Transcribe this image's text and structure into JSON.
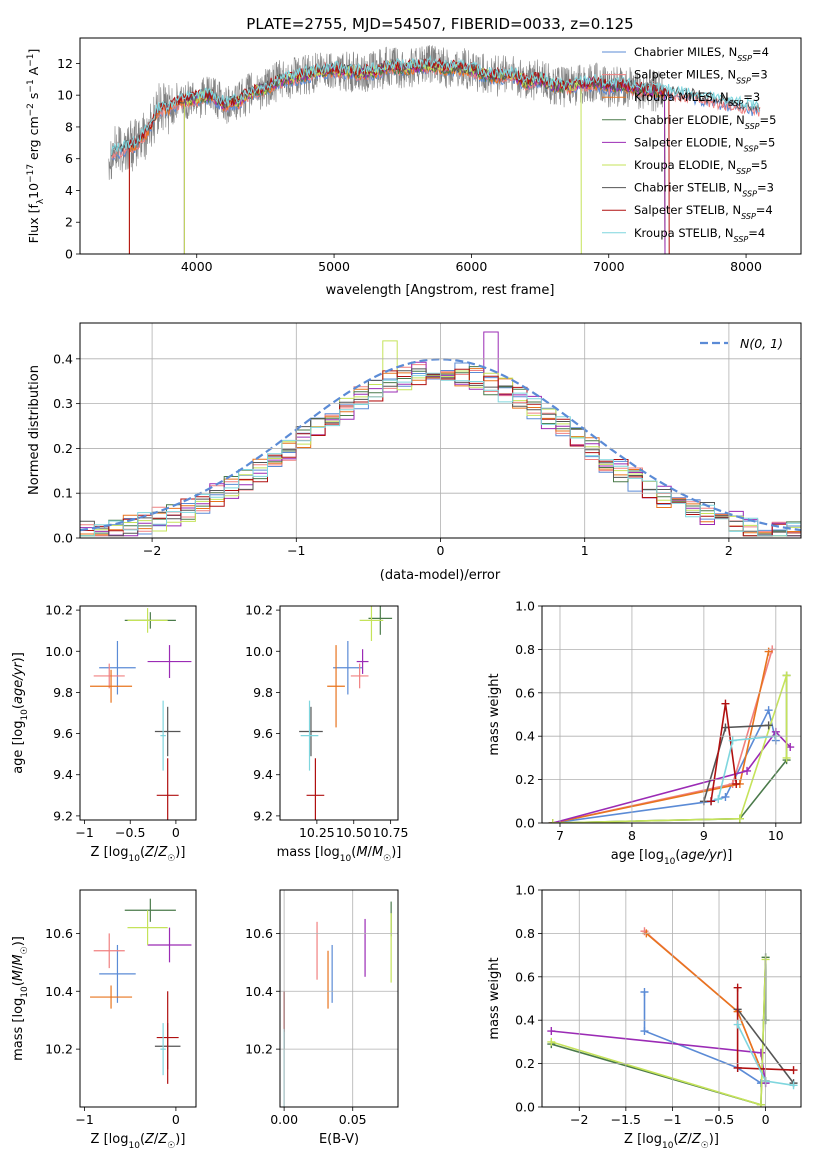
{
  "figure_title": "PLATE=2755, MJD=54507, FIBERID=0033, z=0.125",
  "colors": {
    "chabrier_miles": "#5b8bd6",
    "salpeter_miles": "#f08080",
    "kroupa_miles": "#e8741e",
    "chabrier_elodie": "#4a7a4a",
    "salpeter_elodie": "#9b2bb5",
    "kroupa_elodie": "#c5e35a",
    "chabrier_stelib": "#555555",
    "salpeter_stelib": "#b01010",
    "kroupa_stelib": "#7fd6de",
    "data": "#808080"
  },
  "chart_data": [
    {
      "type": "line",
      "title": "PLATE=2755, MJD=54507, FIBERID=0033, z=0.125",
      "xlabel": "wavelength [Angstrom, rest frame]",
      "ylabel": "Flux [fλ10⁻¹⁷ erg cm⁻² s⁻¹ A⁻¹]",
      "xlim": [
        3150,
        8400
      ],
      "ylim": [
        0,
        13.6
      ],
      "xticks": [
        4000,
        5000,
        6000,
        7000,
        8000
      ],
      "yticks": [
        0,
        2,
        4,
        6,
        8,
        10,
        12
      ],
      "legend": "top-right",
      "legend_entries": [
        {
          "label": "Chabrier MILES, N",
          "sub": "SSP",
          "suffix": "=4",
          "color": "#5b8bd6"
        },
        {
          "label": "Salpeter MILES, N",
          "sub": "SSP",
          "suffix": "=3",
          "color": "#f08080"
        },
        {
          "label": "Kroupa MILES, N",
          "sub": "SSP",
          "suffix": "=3",
          "color": "#e8741e"
        },
        {
          "label": "Chabrier ELODIE, N",
          "sub": "SSP",
          "suffix": "=5",
          "color": "#4a7a4a"
        },
        {
          "label": "Salpeter ELODIE, N",
          "sub": "SSP",
          "suffix": "=5",
          "color": "#9b2bb5"
        },
        {
          "label": "Kroupa ELODIE, N",
          "sub": "SSP",
          "suffix": "=5",
          "color": "#c5e35a"
        },
        {
          "label": "Chabrier STELIB, N",
          "sub": "SSP",
          "suffix": "=3",
          "color": "#555555"
        },
        {
          "label": "Salpeter STELIB, N",
          "sub": "SSP",
          "suffix": "=4",
          "color": "#b01010"
        },
        {
          "label": "Kroupa STELIB, N",
          "sub": "SSP",
          "suffix": "=4",
          "color": "#7fd6de"
        }
      ],
      "spectrum_knots": [
        [
          3360,
          6.3
        ],
        [
          3450,
          6.6
        ],
        [
          3550,
          6.9
        ],
        [
          3650,
          7.8
        ],
        [
          3720,
          9.1
        ],
        [
          3800,
          9.2
        ],
        [
          3900,
          9.7
        ],
        [
          4000,
          9.8
        ],
        [
          4100,
          10.0
        ],
        [
          4200,
          9.4
        ],
        [
          4300,
          9.6
        ],
        [
          4400,
          10.2
        ],
        [
          4500,
          10.4
        ],
        [
          4600,
          10.9
        ],
        [
          4700,
          11.1
        ],
        [
          4800,
          11.3
        ],
        [
          4900,
          11.5
        ],
        [
          5000,
          11.6
        ],
        [
          5100,
          11.5
        ],
        [
          5200,
          11.4
        ],
        [
          5300,
          11.5
        ],
        [
          5400,
          11.8
        ],
        [
          5500,
          11.7
        ],
        [
          5600,
          11.8
        ],
        [
          5700,
          11.9
        ],
        [
          5800,
          11.7
        ],
        [
          5900,
          11.7
        ],
        [
          6000,
          11.6
        ],
        [
          6100,
          11.3
        ],
        [
          6200,
          11.2
        ],
        [
          6300,
          11.3
        ],
        [
          6400,
          10.8
        ],
        [
          6500,
          11.0
        ],
        [
          6600,
          10.6
        ],
        [
          6700,
          10.5
        ],
        [
          6800,
          10.7
        ],
        [
          6900,
          10.8
        ],
        [
          7000,
          10.5
        ],
        [
          7100,
          10.6
        ],
        [
          7200,
          10.4
        ],
        [
          7300,
          10.3
        ],
        [
          7400,
          10.2
        ],
        [
          7600,
          10.0
        ],
        [
          7800,
          9.6
        ],
        [
          8000,
          9.3
        ],
        [
          8100,
          9.1
        ]
      ],
      "model_cutoffs": [
        {
          "model": "salpeter_stelib",
          "start": 3510,
          "end": 7440
        },
        {
          "model": "kroupa_miles",
          "start": 3510,
          "end": 7410
        },
        {
          "model": "kroupa_elodie",
          "start": 3910,
          "end": 6800
        },
        {
          "model": "chabrier_elodie",
          "start": 3910,
          "end": 7410
        },
        {
          "model": "salpeter_elodie",
          "start": 3910,
          "end": 7410
        }
      ]
    },
    {
      "type": "histogram",
      "xlabel": "(data-model)/error",
      "ylabel": "Normed distribution",
      "xlim": [
        -2.5,
        2.5
      ],
      "ylim": [
        0,
        0.48
      ],
      "xticks": [
        -2,
        -1,
        0,
        1,
        2
      ],
      "yticks": [
        0.0,
        0.1,
        0.2,
        0.3,
        0.4
      ],
      "grid": true,
      "legend": "top-right",
      "legend_label": "N(0, 1)",
      "bin_width": 0.1,
      "reference_curve": "normal pdf mean 0 sigma 1",
      "reference_color": "#5b8bd6"
    },
    {
      "type": "scatter",
      "panel": "age vs Z",
      "xlabel": "Z [log10(Z/Z☉)]",
      "ylabel": "age  [log10(age/yr)]",
      "xlim": [
        -1.05,
        0.22
      ],
      "ylim": [
        9.18,
        10.22
      ],
      "xticks": [
        -1,
        -0.5,
        0
      ],
      "yticks": [
        9.2,
        9.4,
        9.6,
        9.8,
        10.0,
        10.2
      ],
      "points": [
        {
          "model": "chabrier_miles",
          "x": -0.64,
          "y": 9.92,
          "xerr": 0.2,
          "yerr": 0.13
        },
        {
          "model": "salpeter_miles",
          "x": -0.73,
          "y": 9.88,
          "xerr": 0.17,
          "yerr": 0.06
        },
        {
          "model": "kroupa_miles",
          "x": -0.71,
          "y": 9.83,
          "xerr": 0.23,
          "yerr": 0.08
        },
        {
          "model": "chabrier_elodie",
          "x": -0.28,
          "y": 10.15,
          "xerr": 0.28,
          "yerr": 0.04
        },
        {
          "model": "salpeter_elodie",
          "x": -0.07,
          "y": 9.95,
          "xerr": 0.24,
          "yerr": 0.08
        },
        {
          "model": "kroupa_elodie",
          "x": -0.31,
          "y": 10.15,
          "xerr": 0.22,
          "yerr": 0.06
        },
        {
          "model": "chabrier_stelib",
          "x": -0.09,
          "y": 9.61,
          "xerr": 0.14,
          "yerr": 0.12
        },
        {
          "model": "salpeter_stelib",
          "x": -0.09,
          "y": 9.3,
          "xerr": 0.12,
          "yerr": 0.18
        },
        {
          "model": "kroupa_stelib",
          "x": -0.14,
          "y": 9.59,
          "xerr": 0.03,
          "yerr": 0.17
        }
      ]
    },
    {
      "type": "scatter",
      "panel": "age vs mass",
      "xlabel": "mass [log10(M/M☉)]",
      "xlim": [
        10.0,
        10.8
      ],
      "ylim": [
        9.18,
        10.22
      ],
      "xticks": [
        10.25,
        10.5,
        10.75
      ],
      "xtick_labels": [
        "10.25",
        "10.50",
        "10.75"
      ],
      "yticks": [
        9.2,
        9.4,
        9.6,
        9.8,
        10.0,
        10.2
      ],
      "points": [
        {
          "model": "chabrier_miles",
          "x": 10.46,
          "y": 9.92,
          "xerr": 0.1,
          "yerr": 0.13
        },
        {
          "model": "salpeter_miles",
          "x": 10.54,
          "y": 9.88,
          "xerr": 0.06,
          "yerr": 0.06
        },
        {
          "model": "kroupa_miles",
          "x": 10.38,
          "y": 9.83,
          "xerr": 0.06,
          "yerr": 0.2
        },
        {
          "model": "chabrier_elodie",
          "x": 10.68,
          "y": 10.16,
          "xerr": 0.08,
          "yerr": 0.08
        },
        {
          "model": "salpeter_elodie",
          "x": 10.56,
          "y": 9.95,
          "xerr": 0.04,
          "yerr": 0.06
        },
        {
          "model": "kroupa_elodie",
          "x": 10.62,
          "y": 10.15,
          "xerr": 0.08,
          "yerr": 0.1
        },
        {
          "model": "chabrier_stelib",
          "x": 10.21,
          "y": 9.61,
          "xerr": 0.08,
          "yerr": 0.12
        },
        {
          "model": "salpeter_stelib",
          "x": 10.24,
          "y": 9.3,
          "xerr": 0.06,
          "yerr": 0.18
        },
        {
          "model": "kroupa_stelib",
          "x": 10.2,
          "y": 9.59,
          "xerr": 0.06,
          "yerr": 0.17
        }
      ]
    },
    {
      "type": "line",
      "panel": "mass weight vs age",
      "xlabel": "age  [log10(age/yr)]",
      "ylabel": "mass weight",
      "xlim": [
        6.75,
        10.35
      ],
      "ylim": [
        0.0,
        1.0
      ],
      "xticks": [
        7,
        8,
        9,
        10
      ],
      "yticks": [
        0.0,
        0.2,
        0.4,
        0.6,
        0.8,
        1.0
      ],
      "grid": true,
      "series": [
        {
          "model": "chabrier_miles",
          "points": [
            [
              6.9,
              0.0
            ],
            [
              9.1,
              0.1
            ],
            [
              9.3,
              0.12
            ],
            [
              9.9,
              0.52
            ],
            [
              10.0,
              0.38
            ]
          ]
        },
        {
          "model": "salpeter_miles",
          "points": [
            [
              6.9,
              0.0
            ],
            [
              9.4,
              0.18
            ],
            [
              9.95,
              0.8
            ]
          ]
        },
        {
          "model": "kroupa_miles",
          "points": [
            [
              6.9,
              0.0
            ],
            [
              9.5,
              0.18
            ],
            [
              9.9,
              0.79
            ]
          ]
        },
        {
          "model": "chabrier_elodie",
          "points": [
            [
              6.9,
              0.0
            ],
            [
              9.5,
              0.02
            ],
            [
              10.15,
              0.29
            ],
            [
              10.15,
              0.68
            ]
          ]
        },
        {
          "model": "salpeter_elodie",
          "points": [
            [
              6.9,
              0.0
            ],
            [
              9.6,
              0.24
            ],
            [
              10.0,
              0.42
            ],
            [
              10.2,
              0.35
            ]
          ]
        },
        {
          "model": "kroupa_elodie",
          "points": [
            [
              6.9,
              0.0
            ],
            [
              9.5,
              0.02
            ],
            [
              10.15,
              0.68
            ],
            [
              10.15,
              0.3
            ]
          ]
        },
        {
          "model": "chabrier_stelib",
          "points": [
            [
              9.0,
              0.1
            ],
            [
              9.3,
              0.44
            ],
            [
              9.9,
              0.45
            ]
          ]
        },
        {
          "model": "salpeter_stelib",
          "points": [
            [
              9.1,
              0.1
            ],
            [
              9.3,
              0.55
            ],
            [
              9.45,
              0.18
            ]
          ]
        },
        {
          "model": "kroupa_stelib",
          "points": [
            [
              9.2,
              0.11
            ],
            [
              9.4,
              0.38
            ],
            [
              10.0,
              0.4
            ]
          ]
        }
      ]
    },
    {
      "type": "scatter",
      "panel": "mass vs Z",
      "xlabel": "Z [log10(Z/Z☉)]",
      "ylabel": "mass [log10(M/M☉)]",
      "xlim": [
        -1.05,
        0.22
      ],
      "ylim": [
        10.0,
        10.75
      ],
      "xticks": [
        -1,
        0
      ],
      "yticks": [
        10.2,
        10.4,
        10.6
      ],
      "points": [
        {
          "model": "chabrier_miles",
          "x": -0.64,
          "y": 10.46,
          "xerr": 0.2,
          "yerr": 0.1
        },
        {
          "model": "salpeter_miles",
          "x": -0.73,
          "y": 10.54,
          "xerr": 0.17,
          "yerr": 0.06
        },
        {
          "model": "kroupa_miles",
          "x": -0.71,
          "y": 10.38,
          "xerr": 0.23,
          "yerr": 0.04
        },
        {
          "model": "chabrier_elodie",
          "x": -0.28,
          "y": 10.68,
          "xerr": 0.28,
          "yerr": 0.04
        },
        {
          "model": "salpeter_elodie",
          "x": -0.07,
          "y": 10.56,
          "xerr": 0.24,
          "yerr": 0.06
        },
        {
          "model": "kroupa_elodie",
          "x": -0.31,
          "y": 10.62,
          "xerr": 0.22,
          "yerr": 0.06
        },
        {
          "model": "chabrier_stelib",
          "x": -0.09,
          "y": 10.21,
          "xerr": 0.14,
          "yerr": 0.08
        },
        {
          "model": "salpeter_stelib",
          "x": -0.09,
          "y": 10.24,
          "xerr": 0.12,
          "yerr": 0.16
        },
        {
          "model": "kroupa_stelib",
          "x": -0.14,
          "y": 10.2,
          "xerr": 0.03,
          "yerr": 0.09
        }
      ]
    },
    {
      "type": "scatter",
      "panel": "mass vs E(B-V)",
      "xlabel": "E(B-V)",
      "xlim": [
        -0.003,
        0.083
      ],
      "ylim": [
        10.0,
        10.75
      ],
      "xticks": [
        0.0,
        0.05
      ],
      "xtick_labels": [
        "0.00",
        "0.05"
      ],
      "yticks": [
        10.2,
        10.4,
        10.6
      ],
      "grid": true,
      "points": [
        {
          "model": "chabrier_miles",
          "x": 0.035,
          "y": 10.46,
          "yerr": 0.1
        },
        {
          "model": "salpeter_miles",
          "x": 0.024,
          "y": 10.54,
          "yerr": 0.1
        },
        {
          "model": "kroupa_miles",
          "x": 0.032,
          "y": 10.44,
          "yerr": 0.1
        },
        {
          "model": "chabrier_elodie",
          "x": 0.078,
          "y": 10.65,
          "yerr": 0.06
        },
        {
          "model": "salpeter_elodie",
          "x": 0.059,
          "y": 10.55,
          "yerr": 0.1
        },
        {
          "model": "kroupa_elodie",
          "x": 0.078,
          "y": 10.55,
          "yerr": 0.12
        },
        {
          "model": "chabrier_stelib",
          "x": 0.0,
          "y": 10.3,
          "yerr": 0.1
        },
        {
          "model": "salpeter_stelib",
          "x": 0.0,
          "y": 10.33,
          "yerr": 0.07
        },
        {
          "model": "kroupa_stelib",
          "x": 0.0,
          "y": 10.13,
          "yerr": 0.14
        }
      ]
    },
    {
      "type": "line",
      "panel": "mass weight vs Z",
      "xlabel": "Z [log10(Z/Z☉)]",
      "ylabel": "mass weight",
      "xlim": [
        -2.4,
        0.38
      ],
      "ylim": [
        0.0,
        1.0
      ],
      "xticks": [
        -2.0,
        -1.5,
        -1.0,
        -0.5,
        0.0
      ],
      "yticks": [
        0.0,
        0.2,
        0.4,
        0.6,
        0.8,
        1.0
      ],
      "grid": true,
      "series": [
        {
          "model": "chabrier_miles",
          "points": [
            [
              -1.3,
              0.53
            ],
            [
              -1.3,
              0.35
            ],
            [
              -0.3,
              0.18
            ],
            [
              -0.05,
              0.11
            ]
          ]
        },
        {
          "model": "salpeter_miles",
          "points": [
            [
              -1.3,
              0.81
            ],
            [
              -0.3,
              0.44
            ],
            [
              0.0,
              0.12
            ]
          ]
        },
        {
          "model": "kroupa_miles",
          "points": [
            [
              -1.28,
              0.8
            ],
            [
              -0.3,
              0.44
            ],
            [
              0.0,
              0.12
            ]
          ]
        },
        {
          "model": "chabrier_elodie",
          "points": [
            [
              -2.3,
              0.29
            ],
            [
              -0.05,
              0.01
            ],
            [
              0.0,
              0.69
            ],
            [
              0.0,
              0.4
            ]
          ]
        },
        {
          "model": "salpeter_elodie",
          "points": [
            [
              -2.3,
              0.35
            ],
            [
              -0.05,
              0.25
            ],
            [
              0.0,
              0.11
            ]
          ]
        },
        {
          "model": "kroupa_elodie",
          "points": [
            [
              -2.3,
              0.3
            ],
            [
              -0.05,
              0.01
            ],
            [
              0.0,
              0.68
            ]
          ]
        },
        {
          "model": "chabrier_stelib",
          "points": [
            [
              -0.3,
              0.45
            ],
            [
              0.3,
              0.11
            ]
          ]
        },
        {
          "model": "salpeter_stelib",
          "points": [
            [
              -0.3,
              0.55
            ],
            [
              -0.3,
              0.18
            ],
            [
              0.3,
              0.17
            ]
          ]
        },
        {
          "model": "kroupa_stelib",
          "points": [
            [
              -0.3,
              0.38
            ],
            [
              0.0,
              0.12
            ],
            [
              0.3,
              0.1
            ]
          ]
        }
      ]
    }
  ]
}
